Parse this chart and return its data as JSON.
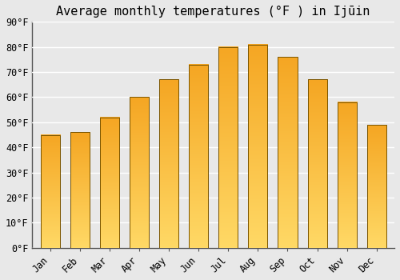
{
  "title": "Average monthly temperatures (°F ) in Ijūin",
  "months": [
    "Jan",
    "Feb",
    "Mar",
    "Apr",
    "May",
    "Jun",
    "Jul",
    "Aug",
    "Sep",
    "Oct",
    "Nov",
    "Dec"
  ],
  "values": [
    45,
    46,
    52,
    60,
    67,
    73,
    80,
    81,
    76,
    67,
    58,
    49
  ],
  "ylim": [
    0,
    90
  ],
  "yticks": [
    0,
    10,
    20,
    30,
    40,
    50,
    60,
    70,
    80,
    90
  ],
  "background_color": "#e8e8e8",
  "grid_color": "#ffffff",
  "bar_color_dark": "#F5A623",
  "bar_color_light": "#FFD966",
  "bar_edge_color": "#7a5500",
  "title_fontsize": 11,
  "tick_fontsize": 8.5
}
